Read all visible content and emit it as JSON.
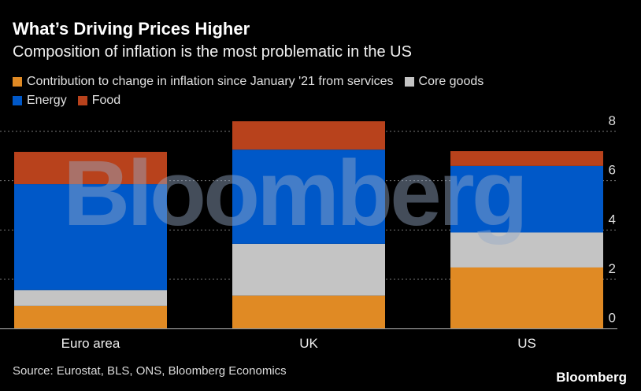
{
  "title": "What’s Driving Prices Higher",
  "subtitle": "Composition of inflation is the most problematic in the US",
  "source": "Source: Eurostat, BLS, ONS, Bloomberg Economics",
  "logo": "Bloomberg",
  "watermark": "Bloomberg",
  "chart_data": {
    "type": "bar",
    "stacked": true,
    "categories": [
      "Euro area",
      "UK",
      "US"
    ],
    "series": [
      {
        "name": "Contribution to change in inflation since January '21 from services",
        "color": "#e08a24",
        "values": [
          0.92,
          1.34,
          2.48
        ]
      },
      {
        "name": "Core goods",
        "color": "#c4c4c4",
        "values": [
          0.64,
          2.1,
          1.42
        ]
      },
      {
        "name": "Energy",
        "color": "#0058c8",
        "values": [
          4.3,
          3.82,
          2.7
        ]
      },
      {
        "name": "Food",
        "color": "#b8421c",
        "values": [
          1.31,
          1.15,
          0.6
        ]
      }
    ],
    "ylim": [
      0,
      8
    ],
    "yticks": [
      "0",
      "2",
      "4",
      "6",
      "8"
    ],
    "grid": true,
    "legend": "top",
    "yaxis_position": "right"
  }
}
